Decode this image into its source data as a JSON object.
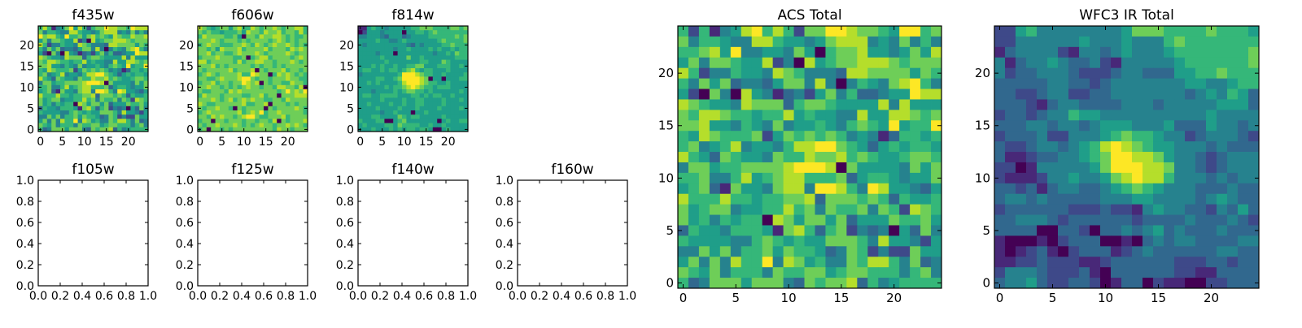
{
  "colormap": {
    "name": "viridis",
    "levels": [
      "#440154",
      "#482878",
      "#3e4989",
      "#31688e",
      "#26828e",
      "#1f9e89",
      "#35b779",
      "#6ece58",
      "#b5de2b",
      "#fde725"
    ]
  },
  "chart_data": [
    {
      "id": "f435w",
      "type": "heatmap",
      "title": "f435w",
      "xlim": [
        -0.5,
        24.5
      ],
      "ylim": [
        -0.5,
        24.5
      ],
      "xticks": [
        "0",
        "5",
        "10",
        "15",
        "20"
      ],
      "yticks": [
        "0",
        "5",
        "10",
        "15",
        "20"
      ],
      "rows_top_to_bottom": [
        "6861457958626779887769888",
        "7466544886554578884547464",
        "9788659667578676587668778",
        "5747765582408567788876777",
        "8624465548764443887777576",
        "6475734435774840465478964",
        "5207408541342574633455988",
        "8765548777367765555848555",
        "7688766566856554485588767",
        "7785546547455654676595669",
        "6587666725767676454136656",
        "6745684554688997653565665",
        "8653765547668778676556776",
        "4775667777899980755554757",
        "6674468567886667356654557",
        "5673175547884998649855435",
        "8666866566778377767636556",
        "7567745566867476674762876",
        "7564656608757757355576675",
        "3655466651786367243405374",
        "6555544676565577764855425",
        "4475746675766534762422755",
        "5747486694875644768864734",
        "7657466647667756776664674",
        "6347775777437677836456666"
      ]
    },
    {
      "id": "f606w",
      "type": "heatmap",
      "title": "f606w",
      "xlim": [
        -0.5,
        24.5
      ],
      "ylim": [
        -0.5,
        24.5
      ],
      "xticks": [
        "0",
        "5",
        "10",
        "15",
        "20"
      ],
      "yticks": [
        "0",
        "5",
        "10",
        "15",
        "20"
      ],
      "rows_top_to_bottom": [
        "8765677578668767787677886",
        "7676656667587768778677686",
        "6877776675077687788767667",
        "7778767776767777678767677",
        "6787766677876876787787676",
        "7767587778677778677768787",
        "7786776678777876777787677",
        "6777877766706788677776787",
        "8867777768677887767778767",
        "7778676777776767767677777",
        "7677777867778076777867767",
        "6787677778669877068787676",
        "7766787778997677677787766",
        "6778677677987807677668776",
        "7787767676787767768877680",
        "7667776878777777776797879",
        "6877767777667786770777888",
        "7778767867878776677687777",
        "8766777777866778077767677",
        "7677877607677770767777876",
        "6787777778678796778777776",
        "7768787767899766777867777",
        "6770776777677677680767778",
        "7677877787676787767787876",
        "6707767677777777768776777"
      ]
    },
    {
      "id": "f814w",
      "type": "heatmap",
      "title": "f814w",
      "xlim": [
        -0.5,
        24.5
      ],
      "ylim": [
        -0.5,
        24.5
      ],
      "xticks": [
        "0",
        "5",
        "10",
        "15",
        "20"
      ],
      "yticks": [
        "0",
        "5",
        "10",
        "15",
        "20"
      ],
      "rows_top_to_bottom": [
        "1156554555556677766667767",
        "0255545555055665676666666",
        "4455543555345555666666767",
        "5555655445655555556766667",
        "5455555555543545555667666",
        "5555555545565555656556566",
        "5555455505555555545565766",
        "5555565555575565555555666",
        "5555556555555566555765555",
        "5556565565566775556665565",
        "5665565665678656655565555",
        "4555555556999876655655556",
        "5555665567999987055055566",
        "5565655556899987665565555",
        "5555556566789876656665555",
        "5554555565677665655555565",
        "5665566665556656566556555",
        "5555565555655665555655565",
        "5565555655655665555655555",
        "5555655556555655556555565",
        "5555545565550556555555555",
        "5556655557656655555655555",
        "6555660056755555550565566",
        "5655556657666655655655555",
        "5556555656566566500565555"
      ]
    },
    {
      "id": "f105w",
      "type": "empty",
      "title": "f105w",
      "xticks": [
        "0.0",
        "0.2",
        "0.4",
        "0.6",
        "0.8",
        "1.0"
      ],
      "yticks": [
        "0.0",
        "0.2",
        "0.4",
        "0.6",
        "0.8",
        "1.0"
      ]
    },
    {
      "id": "f125w",
      "type": "empty",
      "title": "f125w",
      "xticks": [
        "0.0",
        "0.2",
        "0.4",
        "0.6",
        "0.8",
        "1.0"
      ],
      "yticks": [
        "0.0",
        "0.2",
        "0.4",
        "0.6",
        "0.8",
        "1.0"
      ]
    },
    {
      "id": "f140w",
      "type": "empty",
      "title": "f140w",
      "xticks": [
        "0.0",
        "0.2",
        "0.4",
        "0.6",
        "0.8",
        "1.0"
      ],
      "yticks": [
        "0.0",
        "0.2",
        "0.4",
        "0.6",
        "0.8",
        "1.0"
      ]
    },
    {
      "id": "f160w",
      "type": "empty",
      "title": "f160w",
      "xticks": [
        "0.0",
        "0.2",
        "0.4",
        "0.6",
        "0.8",
        "1.0"
      ],
      "yticks": [
        "0.0",
        "0.2",
        "0.4",
        "0.6",
        "0.8",
        "1.0"
      ]
    },
    {
      "id": "acs_total",
      "type": "heatmap",
      "title": "ACS Total",
      "xlim": [
        -0.5,
        24.5
      ],
      "ylim": [
        -0.5,
        24.5
      ],
      "xticks": [
        "0",
        "5",
        "10",
        "15",
        "20"
      ],
      "yticks": [
        "0",
        "5",
        "10",
        "15",
        "20"
      ],
      "rows_top_to_bottom": [
        "6261458968627799877659967",
        "7466544886554578884547464",
        "6678594455475067785545758",
        "5747765582408567788876777",
        "8624465548764443887777576",
        "6475734435774840465478964",
        "5207408541342574633455988",
        "8765548777367765555848555",
        "7688766566856554485588767",
        "7785546547455654676595669",
        "6587666725767676454136656",
        "6745684554688997653565665",
        "8653765547668778676556776",
        "4775667777899980755554757",
        "6674468567886667356654557",
        "5673175547884998649855435",
        "8666866566778377767636556",
        "7567745566867476674762876",
        "7564656608757757355576675",
        "3655466651786367243405374",
        "6555544676565577764855425",
        "4475746675766534762422755",
        "5747486694875644768864734",
        "7657466647667756776664674",
        "6347775777437677836456666"
      ]
    },
    {
      "id": "wfc3_ir_total",
      "type": "heatmap",
      "title": "WFC3 IR Total",
      "xlim": [
        -0.5,
        24.5
      ],
      "ylim": [
        -0.5,
        24.5
      ],
      "xticks": [
        "0",
        "5",
        "10",
        "15",
        "20"
      ],
      "yticks": [
        "0",
        "5",
        "10",
        "15",
        "20"
      ],
      "rows_top_to_bottom": [
        "2256444444445777666676665",
        "2244444454445444676666666",
        "1344442144345444566666667",
        "4134454334214444456666667",
        "4233444322234433355667666",
        "3333344332344444445544566",
        "3322344223344444443454653",
        "3332134433334443444445553",
        "2332344655444444444454444",
        "3334434434555444533354434",
        "2333422444567665442344432",
        "3223443456898765544434333",
        "3112334456799887544323444",
        "2201444445799988744323444",
        "2111244544578988644434344",
        "3323134433456765444333433",
        "3443433333444554444345433",
        "2333333222322145443324353",
        "3344432333333233334333432",
        "3333003320334345343334333",
        "1000102333001034344333344",
        "1012310233312343333334433",
        "1122322211233333322233233",
        "2444322231033333322113333",
        "3445322332013302110022333"
      ]
    }
  ]
}
